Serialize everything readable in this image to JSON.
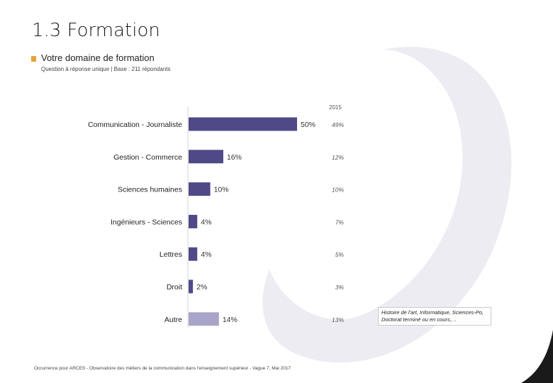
{
  "page": {
    "title": "1.3 Formation",
    "subtitle": "Votre domaine de formation",
    "note": "Question à réponse unique | Base : 211 répondants",
    "year_label": "2015",
    "footnote": "Occurrence pour ARCES - Observatoire des métiers de la communication dans l'enseignement supérieur - Vague 7, Mai 2017",
    "callout": "Histoire de l'art, Informatique, Sciences-Po, Doctorat terminé ou en cours,…"
  },
  "colors": {
    "bar_main": "#4f4a87",
    "bar_other": "#a9a5c9",
    "accent": "#e6a23c",
    "watermark": "#ececf2"
  },
  "chart_data": {
    "type": "bar",
    "orientation": "horizontal",
    "categories": [
      "Communication - Journaliste",
      "Gestion - Commerce",
      "Sciences humaines",
      "Ingénieurs - Sciences",
      "Lettres",
      "Droit",
      "Autre"
    ],
    "series": [
      {
        "values": [
          50,
          16,
          10,
          4,
          4,
          2,
          14
        ]
      }
    ],
    "value_labels": [
      "50%",
      "16%",
      "10%",
      "4%",
      "4%",
      "2%",
      "14%"
    ],
    "comparison_2015": {
      "label": "2015",
      "values": [
        49,
        12,
        10,
        7,
        5,
        3,
        13
      ],
      "labels": [
        "49%",
        "12%",
        "10%",
        "7%",
        "5%",
        "3%",
        "13%"
      ]
    },
    "xlim": [
      0,
      50
    ]
  }
}
